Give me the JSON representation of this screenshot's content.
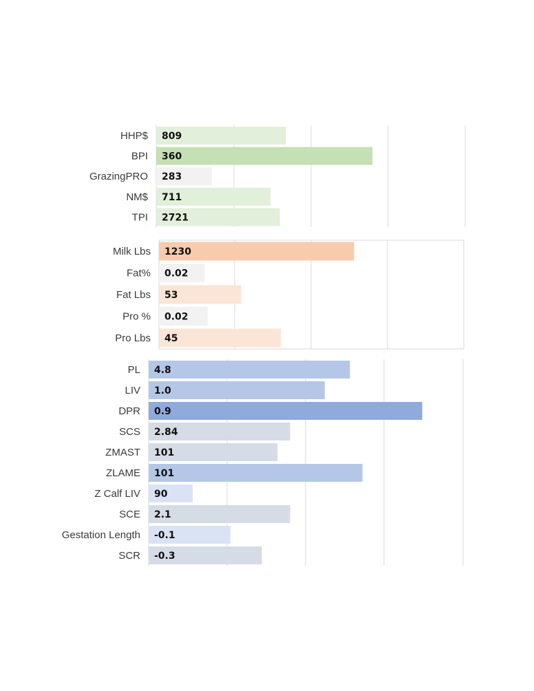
{
  "chart_data": [
    {
      "type": "bar",
      "orientation": "horizontal",
      "group": "indexes",
      "categories": [
        "HHP$",
        "BPI",
        "GrazingPRO",
        "NM$",
        "TPI"
      ],
      "values": [
        809,
        360,
        283,
        711,
        2721
      ],
      "value_labels": [
        "809",
        "360",
        "283",
        "711",
        "2721"
      ],
      "bar_fill_fraction": [
        0.42,
        0.7,
        0.18,
        0.37,
        0.4
      ],
      "bar_colors": [
        "#e2efdb",
        "#c4e0b4",
        "#f2f2f2",
        "#e2efdb",
        "#e2efdb"
      ],
      "grid": true
    },
    {
      "type": "bar",
      "orientation": "horizontal",
      "group": "production",
      "categories": [
        "Milk Lbs",
        "Fat%",
        "Fat Lbs",
        "Pro %",
        "Pro Lbs"
      ],
      "values": [
        1230,
        0.02,
        53,
        0.02,
        45
      ],
      "value_labels": [
        "1230",
        "0.02",
        "53",
        "0.02",
        "45"
      ],
      "bar_fill_fraction": [
        0.64,
        0.15,
        0.27,
        0.16,
        0.4
      ],
      "bar_colors": [
        "#f8cbad",
        "#f2f2f2",
        "#fbe5d6",
        "#f2f2f2",
        "#fbe5d6"
      ],
      "grid": true
    },
    {
      "type": "bar",
      "orientation": "horizontal",
      "group": "health",
      "categories": [
        "PL",
        "LIV",
        "DPR",
        "SCS",
        "ZMAST",
        "ZLAME",
        "Z Calf LIV",
        "SCE",
        "Gestation Length",
        "SCR"
      ],
      "values": [
        4.8,
        1.0,
        0.9,
        2.84,
        101,
        101,
        90,
        2.1,
        -0.1,
        -0.3
      ],
      "value_labels": [
        "4.8",
        "1.0",
        "0.9",
        "2.84",
        "101",
        "101",
        "90",
        "2.1",
        "-0.1",
        "-0.3"
      ],
      "bar_fill_fraction": [
        0.64,
        0.56,
        0.87,
        0.45,
        0.41,
        0.68,
        0.14,
        0.45,
        0.26,
        0.36
      ],
      "bar_colors": [
        "#b4c7e7",
        "#b4c7e7",
        "#8faadc",
        "#d6dce5",
        "#d6dce5",
        "#b4c7e7",
        "#dae3f3",
        "#d6dce5",
        "#dae3f3",
        "#d6dce5"
      ],
      "grid": true
    }
  ]
}
